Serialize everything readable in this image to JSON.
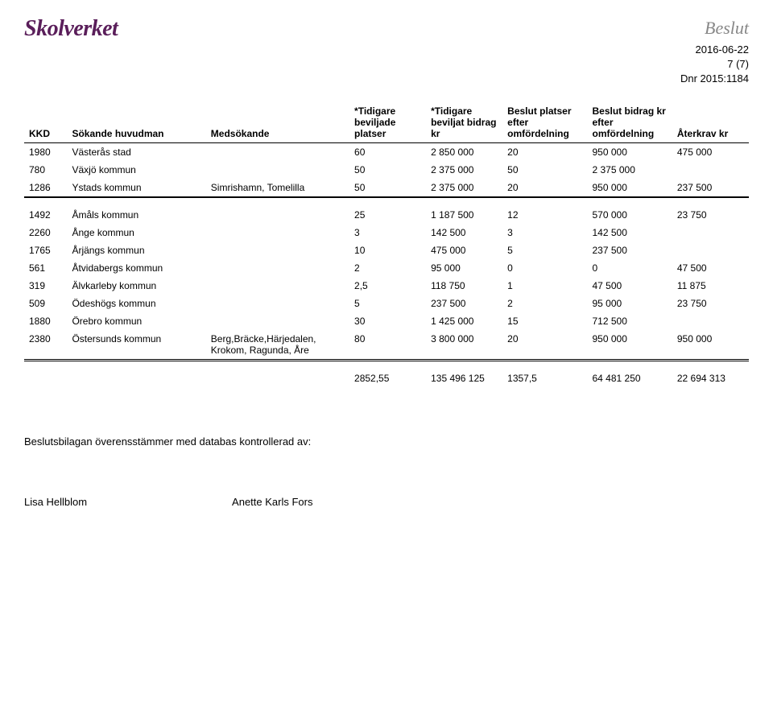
{
  "header": {
    "logo": "Skolverket",
    "logo_color": "#5a1e5a",
    "beslut": "Beslut",
    "date": "2016-06-22",
    "page": "7 (7)",
    "dnr": "Dnr 2015:1184"
  },
  "table": {
    "columns": [
      "KKD",
      "Sökande huvudman",
      "Medsökande",
      "*Tidigare beviljade platser",
      "*Tidigare beviljat bidrag kr",
      "Beslut platser efter omfördelning",
      "Beslut bidrag kr efter omfördelning",
      "Återkrav kr"
    ],
    "rows_a": [
      [
        "1980",
        "Västerås stad",
        "",
        "60",
        "2 850 000",
        "20",
        "950 000",
        "475 000"
      ],
      [
        "780",
        "Växjö kommun",
        "",
        "50",
        "2 375 000",
        "50",
        "2 375 000",
        ""
      ],
      [
        "1286",
        "Ystads kommun",
        "Simrishamn, Tomelilla",
        "50",
        "2 375 000",
        "20",
        "950 000",
        "237 500"
      ]
    ],
    "rows_b": [
      [
        "1492",
        "Åmåls kommun",
        "",
        "25",
        "1 187 500",
        "12",
        "570 000",
        "23 750"
      ],
      [
        "2260",
        "Ånge kommun",
        "",
        "3",
        "142 500",
        "3",
        "142 500",
        ""
      ],
      [
        "1765",
        "Årjängs kommun",
        "",
        "10",
        "475 000",
        "5",
        "237 500",
        ""
      ],
      [
        "561",
        "Åtvidabergs kommun",
        "",
        "2",
        "95 000",
        "0",
        "0",
        "47 500"
      ],
      [
        "319",
        "Älvkarleby kommun",
        "",
        "2,5",
        "118 750",
        "1",
        "47 500",
        "11 875"
      ],
      [
        "509",
        "Ödeshögs kommun",
        "",
        "5",
        "237 500",
        "2",
        "95 000",
        "23 750"
      ],
      [
        "1880",
        "Örebro kommun",
        "",
        "30",
        "1 425 000",
        "15",
        "712 500",
        ""
      ],
      [
        "2380",
        "Östersunds kommun",
        "Berg,Bräcke,Härjedalen, Krokom, Ragunda, Åre",
        "80",
        "3 800 000",
        "20",
        "950 000",
        "950 000"
      ]
    ],
    "totals": [
      "",
      "",
      "",
      "2852,55",
      "135 496 125",
      "1357,5",
      "64 481 250",
      "22 694 313"
    ]
  },
  "footer": {
    "confirm": "Beslutsbilagan överensstämmer med databas kontrollerad av:",
    "sign1": "Lisa Hellblom",
    "sign2": "Anette Karls Fors"
  }
}
